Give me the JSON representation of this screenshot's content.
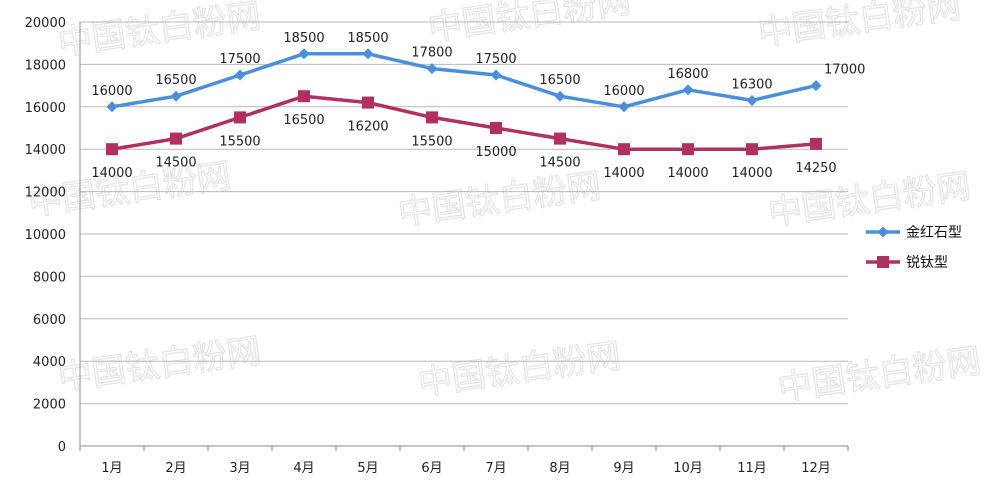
{
  "chart_data": {
    "type": "line",
    "categories": [
      "1月",
      "2月",
      "3月",
      "4月",
      "5月",
      "6月",
      "7月",
      "8月",
      "9月",
      "10月",
      "11月",
      "12月"
    ],
    "series": [
      {
        "name": "金红石型",
        "color": "#4a8fdc",
        "marker": "diamond",
        "values": [
          16000,
          16500,
          17500,
          18500,
          18500,
          17800,
          17500,
          16500,
          16000,
          16800,
          16300,
          17000
        ]
      },
      {
        "name": "锐钛型",
        "color": "#b03060",
        "marker": "square",
        "values": [
          14000,
          14500,
          15500,
          16500,
          16200,
          15500,
          15000,
          14500,
          14000,
          14000,
          14000,
          14250
        ]
      }
    ],
    "ylim": [
      0,
      20000
    ],
    "yticks": [
      0,
      2000,
      4000,
      6000,
      8000,
      10000,
      12000,
      14000,
      16000,
      18000,
      20000
    ],
    "grid": true,
    "legend": "right",
    "title": "",
    "xlabel": "",
    "ylabel": ""
  },
  "watermark": {
    "text": "中国钛白粉网"
  }
}
